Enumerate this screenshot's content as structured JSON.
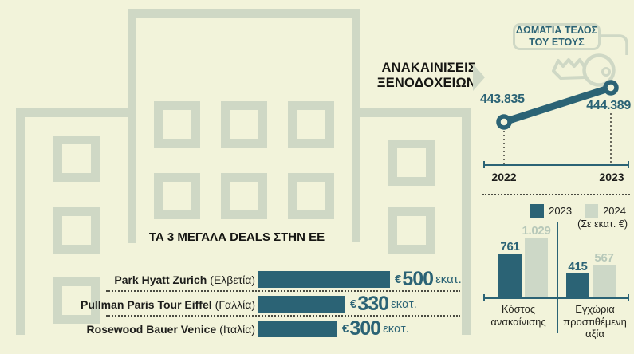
{
  "header": {
    "line1": "ΑΝΑΚΑΙΝΙΣΕΙΣ",
    "line2": "ΞΕΝΟΔΟΧΕΙΩΝ"
  },
  "room_tag": {
    "line1": "ΔΩΜΑΤΙΑ ΤΕΛΟΣ",
    "line2": "ΤΟΥ ΕΤΟΥΣ"
  },
  "line_chart": {
    "points": [
      {
        "year": "2022",
        "label": "443.835",
        "value": 443835
      },
      {
        "year": "2023",
        "label": "444.389",
        "value": 444389
      }
    ]
  },
  "bar_chart": {
    "legend": {
      "s2023": "2023",
      "s2024": "2024"
    },
    "unit_note": "(Σε εκατ. €)",
    "groups": [
      {
        "label": "Κόστος ανακαίνισης",
        "label2023": "761",
        "label2024": "1.029",
        "value2023": 761,
        "value2024": 1029
      },
      {
        "label": "Εγχώρια προστιθέμενη αξία",
        "label2023": "415",
        "label2024": "567",
        "value2023": 415,
        "value2024": 567
      }
    ]
  },
  "deals": {
    "title": "ΤΑ 3 ΜΕΓΑΛΑ DEALS ΣΤΗΝ ΕΕ",
    "rows": [
      {
        "name": "Park Hyatt Zurich",
        "country": "(Ελβετία)",
        "euro": "€",
        "value_label": "500",
        "unit": "εκατ.",
        "value": 500
      },
      {
        "name": "Pullman Paris Tour Eiffel",
        "country": "(Γαλλία)",
        "euro": "€",
        "value_label": "330",
        "unit": "εκατ.",
        "value": 330
      },
      {
        "name": "Rosewood Bauer Venice",
        "country": "(Ιταλία)",
        "euro": "€",
        "value_label": "300",
        "unit": "εκατ.",
        "value": 300
      }
    ]
  },
  "colors": {
    "background": "#f2f3da",
    "building": "#cfd8c5",
    "teal": "#2b6375",
    "light_series": "#cdd8c7",
    "ink": "#1d1d1b"
  },
  "chart_data": [
    {
      "type": "line",
      "title": "ΑΝΑΚΑΙΝΙΣΕΙΣ ΞΕΝΟΔΟΧΕΙΩΝ",
      "subtitle": "ΔΩΜΑΤΙΑ ΤΕΛΟΣ ΤΟΥ ΕΤΟΥΣ",
      "x": [
        "2022",
        "2023"
      ],
      "values": [
        443835,
        444389
      ],
      "value_labels": [
        "443.835",
        "444.389"
      ],
      "legend_position": "none",
      "grid": false
    },
    {
      "type": "bar",
      "title": "",
      "subtitle": "(Σε εκατ. €)",
      "categories": [
        "Κόστος ανακαίνισης",
        "Εγχώρια προστιθέμενη αξία"
      ],
      "series": [
        {
          "name": "2023",
          "values": [
            761,
            415
          ],
          "color": "#2b6375"
        },
        {
          "name": "2024",
          "values": [
            1029,
            567
          ],
          "color": "#cdd8c7"
        }
      ],
      "value_labels": [
        [
          "761",
          "415"
        ],
        [
          "1.029",
          "567"
        ]
      ],
      "ylim": [
        0,
        1100
      ],
      "legend_position": "top-right",
      "grid": false
    },
    {
      "type": "bar",
      "title": "ΤΑ 3 ΜΕΓΑΛΑ DEALS ΣΤΗΝ ΕΕ",
      "orientation": "horizontal",
      "categories": [
        "Park Hyatt Zurich (Ελβετία)",
        "Pullman Paris Tour Eiffel (Γαλλία)",
        "Rosewood Bauer Venice (Ιταλία)"
      ],
      "values": [
        500,
        330,
        300
      ],
      "value_labels": [
        "€500 εκατ.",
        "€330 εκατ.",
        "€300 εκατ."
      ],
      "ylabel": "εκατ. €",
      "grid": false
    }
  ]
}
